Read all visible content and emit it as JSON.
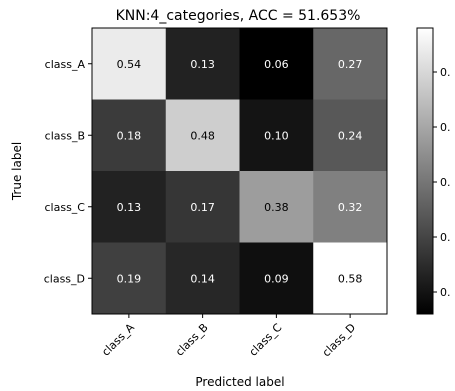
{
  "chart_data": {
    "type": "heatmap",
    "title": "KNN:4_categories, ACC = 51.653%",
    "xlabel": "Predicted label",
    "ylabel": "True label",
    "x_categories": [
      "class_A",
      "class_B",
      "class_C",
      "class_D"
    ],
    "y_categories": [
      "class_A",
      "class_B",
      "class_C",
      "class_D"
    ],
    "values": [
      [
        0.54,
        0.13,
        0.06,
        0.27
      ],
      [
        0.18,
        0.48,
        0.1,
        0.24
      ],
      [
        0.13,
        0.17,
        0.38,
        0.32
      ],
      [
        0.19,
        0.14,
        0.09,
        0.58
      ]
    ],
    "colormap": "gray",
    "color_range": [
      0.06,
      0.58
    ],
    "colorbar_ticks": [
      0.1,
      0.2,
      0.3,
      0.4,
      0.5
    ],
    "colorbar_tick_labels": [
      "0.",
      "0.",
      "0.",
      "0.",
      "0."
    ],
    "grid": false,
    "legend": "colorbar-right"
  }
}
